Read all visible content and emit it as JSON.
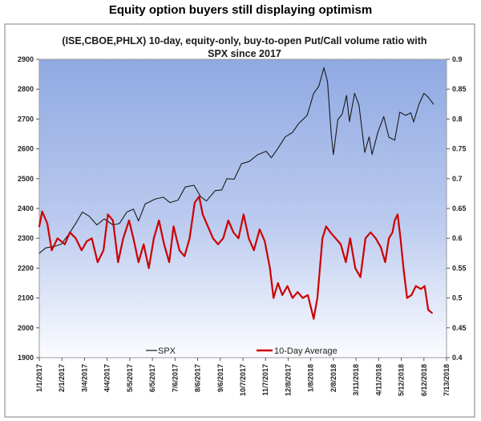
{
  "page_title": "Equity option buyers still displaying optimism",
  "chart_data": {
    "type": "line",
    "title_lines": [
      "(ISE,CBOE,PHLX) 10-day, equity-only, buy-to-open Put/Call volume ratio with",
      "SPX since 2017"
    ],
    "x_tick_labels": [
      "1/1/2017",
      "2/1/2017",
      "3/4/2017",
      "4/4/2017",
      "5/5/2017",
      "6/5/2017",
      "7/6/2017",
      "8/6/2017",
      "9/6/2017",
      "10/7/2017",
      "11/7/2017",
      "12/8/2017",
      "1/8/2018",
      "2/8/2018",
      "3/11/2018",
      "4/11/2018",
      "5/12/2018",
      "6/12/2018",
      "7/13/2018"
    ],
    "x_range": [
      "2017-01-01",
      "2018-07-13"
    ],
    "y_left_ticks": [
      "1900",
      "2000",
      "2100",
      "2200",
      "2300",
      "2400",
      "2500",
      "2600",
      "2700",
      "2800",
      "2900"
    ],
    "y_left_range": [
      1900,
      2900
    ],
    "y_right_ticks": [
      "0.4",
      "0.45",
      "0.5",
      "0.55",
      "0.6",
      "0.65",
      "0.7",
      "0.75",
      "0.8",
      "0.85",
      "0.9"
    ],
    "y_right_range": [
      0.4,
      0.9
    ],
    "grid": false,
    "legend_position": "bottom",
    "series": [
      {
        "name": "SPX",
        "axis": "left",
        "color": "#1a1a1a",
        "points": [
          [
            "2017-01-01",
            2250
          ],
          [
            "2017-01-10",
            2268
          ],
          [
            "2017-01-20",
            2272
          ],
          [
            "2017-01-31",
            2280
          ],
          [
            "2017-02-10",
            2312
          ],
          [
            "2017-02-20",
            2350
          ],
          [
            "2017-03-01",
            2388
          ],
          [
            "2017-03-10",
            2375
          ],
          [
            "2017-03-21",
            2345
          ],
          [
            "2017-03-31",
            2365
          ],
          [
            "2017-04-12",
            2345
          ],
          [
            "2017-04-21",
            2350
          ],
          [
            "2017-05-01",
            2388
          ],
          [
            "2017-05-10",
            2398
          ],
          [
            "2017-05-17",
            2358
          ],
          [
            "2017-05-26",
            2415
          ],
          [
            "2017-06-09",
            2432
          ],
          [
            "2017-06-20",
            2438
          ],
          [
            "2017-06-29",
            2420
          ],
          [
            "2017-07-10",
            2428
          ],
          [
            "2017-07-20",
            2472
          ],
          [
            "2017-08-01",
            2478
          ],
          [
            "2017-08-10",
            2440
          ],
          [
            "2017-08-18",
            2425
          ],
          [
            "2017-08-30",
            2460
          ],
          [
            "2017-09-08",
            2462
          ],
          [
            "2017-09-15",
            2500
          ],
          [
            "2017-09-25",
            2498
          ],
          [
            "2017-10-05",
            2550
          ],
          [
            "2017-10-16",
            2558
          ],
          [
            "2017-10-27",
            2580
          ],
          [
            "2017-11-08",
            2592
          ],
          [
            "2017-11-15",
            2570
          ],
          [
            "2017-11-24",
            2602
          ],
          [
            "2017-12-04",
            2640
          ],
          [
            "2017-12-14",
            2655
          ],
          [
            "2017-12-22",
            2684
          ],
          [
            "2018-01-03",
            2712
          ],
          [
            "2018-01-12",
            2786
          ],
          [
            "2018-01-19",
            2810
          ],
          [
            "2018-01-26",
            2872
          ],
          [
            "2018-01-31",
            2824
          ],
          [
            "2018-02-05",
            2648
          ],
          [
            "2018-02-08",
            2581
          ],
          [
            "2018-02-14",
            2698
          ],
          [
            "2018-02-20",
            2716
          ],
          [
            "2018-02-26",
            2779
          ],
          [
            "2018-03-02",
            2691
          ],
          [
            "2018-03-09",
            2786
          ],
          [
            "2018-03-15",
            2747
          ],
          [
            "2018-03-23",
            2588
          ],
          [
            "2018-03-29",
            2640
          ],
          [
            "2018-04-02",
            2581
          ],
          [
            "2018-04-10",
            2656
          ],
          [
            "2018-04-18",
            2708
          ],
          [
            "2018-04-25",
            2639
          ],
          [
            "2018-05-03",
            2629
          ],
          [
            "2018-05-10",
            2723
          ],
          [
            "2018-05-18",
            2712
          ],
          [
            "2018-05-25",
            2721
          ],
          [
            "2018-05-29",
            2690
          ],
          [
            "2018-06-05",
            2748
          ],
          [
            "2018-06-12",
            2786
          ],
          [
            "2018-06-18",
            2773
          ],
          [
            "2018-06-25",
            2750
          ]
        ]
      },
      {
        "name": "10-Day Average",
        "axis": "right",
        "color": "#cc0000",
        "points": [
          [
            "2017-01-01",
            0.62
          ],
          [
            "2017-01-05",
            0.645
          ],
          [
            "2017-01-12",
            0.625
          ],
          [
            "2017-01-18",
            0.58
          ],
          [
            "2017-01-26",
            0.6
          ],
          [
            "2017-02-05",
            0.59
          ],
          [
            "2017-02-12",
            0.61
          ],
          [
            "2017-02-20",
            0.6
          ],
          [
            "2017-02-28",
            0.58
          ],
          [
            "2017-03-07",
            0.595
          ],
          [
            "2017-03-14",
            0.6
          ],
          [
            "2017-03-22",
            0.56
          ],
          [
            "2017-03-30",
            0.58
          ],
          [
            "2017-04-05",
            0.64
          ],
          [
            "2017-04-12",
            0.63
          ],
          [
            "2017-04-19",
            0.56
          ],
          [
            "2017-04-26",
            0.6
          ],
          [
            "2017-05-04",
            0.63
          ],
          [
            "2017-05-10",
            0.6
          ],
          [
            "2017-05-17",
            0.56
          ],
          [
            "2017-05-24",
            0.59
          ],
          [
            "2017-05-31",
            0.55
          ],
          [
            "2017-06-07",
            0.6
          ],
          [
            "2017-06-14",
            0.63
          ],
          [
            "2017-06-21",
            0.59
          ],
          [
            "2017-06-28",
            0.56
          ],
          [
            "2017-07-04",
            0.62
          ],
          [
            "2017-07-12",
            0.58
          ],
          [
            "2017-07-19",
            0.57
          ],
          [
            "2017-07-26",
            0.6
          ],
          [
            "2017-08-02",
            0.66
          ],
          [
            "2017-08-08",
            0.67
          ],
          [
            "2017-08-13",
            0.64
          ],
          [
            "2017-08-20",
            0.62
          ],
          [
            "2017-08-27",
            0.6
          ],
          [
            "2017-09-03",
            0.59
          ],
          [
            "2017-09-10",
            0.6
          ],
          [
            "2017-09-17",
            0.63
          ],
          [
            "2017-09-24",
            0.61
          ],
          [
            "2017-10-01",
            0.6
          ],
          [
            "2017-10-08",
            0.64
          ],
          [
            "2017-10-15",
            0.6
          ],
          [
            "2017-10-22",
            0.58
          ],
          [
            "2017-10-30",
            0.615
          ],
          [
            "2017-11-06",
            0.595
          ],
          [
            "2017-11-13",
            0.55
          ],
          [
            "2017-11-18",
            0.5
          ],
          [
            "2017-11-24",
            0.525
          ],
          [
            "2017-11-30",
            0.505
          ],
          [
            "2017-12-07",
            0.52
          ],
          [
            "2017-12-14",
            0.5
          ],
          [
            "2017-12-21",
            0.51
          ],
          [
            "2017-12-28",
            0.5
          ],
          [
            "2018-01-04",
            0.505
          ],
          [
            "2018-01-09",
            0.48
          ],
          [
            "2018-01-12",
            0.465
          ],
          [
            "2018-01-17",
            0.5
          ],
          [
            "2018-01-24",
            0.6
          ],
          [
            "2018-01-29",
            0.62
          ],
          [
            "2018-02-04",
            0.61
          ],
          [
            "2018-02-11",
            0.6
          ],
          [
            "2018-02-18",
            0.59
          ],
          [
            "2018-02-25",
            0.56
          ],
          [
            "2018-03-03",
            0.6
          ],
          [
            "2018-03-10",
            0.55
          ],
          [
            "2018-03-17",
            0.535
          ],
          [
            "2018-03-24",
            0.6
          ],
          [
            "2018-03-31",
            0.61
          ],
          [
            "2018-04-07",
            0.6
          ],
          [
            "2018-04-14",
            0.585
          ],
          [
            "2018-04-20",
            0.56
          ],
          [
            "2018-04-25",
            0.6
          ],
          [
            "2018-04-30",
            0.61
          ],
          [
            "2018-05-03",
            0.63
          ],
          [
            "2018-05-07",
            0.64
          ],
          [
            "2018-05-11",
            0.6
          ],
          [
            "2018-05-15",
            0.55
          ],
          [
            "2018-05-20",
            0.5
          ],
          [
            "2018-05-26",
            0.505
          ],
          [
            "2018-06-01",
            0.52
          ],
          [
            "2018-06-08",
            0.515
          ],
          [
            "2018-06-13",
            0.52
          ],
          [
            "2018-06-18",
            0.48
          ],
          [
            "2018-06-23",
            0.475
          ]
        ]
      }
    ]
  }
}
